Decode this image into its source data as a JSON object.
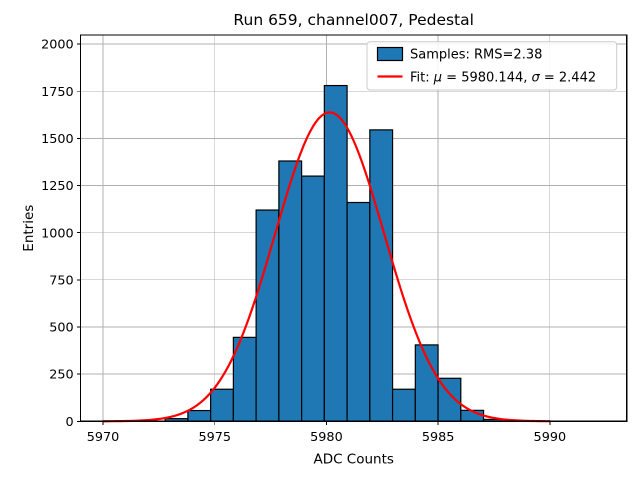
{
  "chart_data": {
    "type": "bar",
    "subtype": "histogram-with-gaussian-fit",
    "title": "Run 659, channel007, Pedestal",
    "xlabel": "ADC Counts",
    "ylabel": "Entries",
    "xticks": [
      5970,
      5975,
      5980,
      5985,
      5990
    ],
    "yticks": [
      0,
      250,
      500,
      750,
      1000,
      1250,
      1500,
      1750,
      2000
    ],
    "xlim": [
      5969.0,
      5993.44
    ],
    "ylim": [
      0,
      2048
    ],
    "grid": true,
    "bins": {
      "start": 5972.78,
      "width": 1.018,
      "count": 15
    },
    "counts": [
      14,
      57,
      170,
      445,
      1120,
      1380,
      1300,
      1780,
      1160,
      1545,
      170,
      405,
      228,
      58,
      10
    ],
    "fit": {
      "mu": 5980.144,
      "sigma": 2.442,
      "amplitude": 1638,
      "x_range": [
        5970,
        5990
      ]
    },
    "legend": {
      "position": "upper-right",
      "samples_label": "Samples: RMS=2.38",
      "fit_label": "Fit: μ = 5980.144, σ = 2.442"
    },
    "colors": {
      "bar_fill": "#1f77b4",
      "bar_edge": "#000000",
      "fit_line": "#ff0000",
      "grid": "#b0b0b0",
      "spine": "#000000",
      "legend_border": "#cccccc",
      "legend_bg": "rgba(255,255,255,0.85)"
    }
  }
}
